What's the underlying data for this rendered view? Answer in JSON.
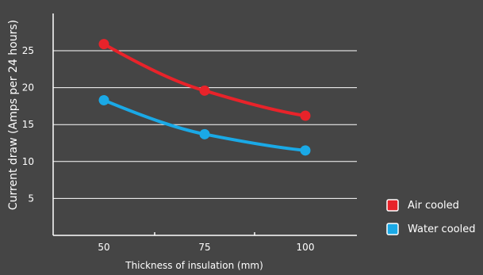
{
  "chart_data": {
    "type": "line",
    "categories": [
      "50",
      "75",
      "100"
    ],
    "series": [
      {
        "name": "Air cooled",
        "values": [
          25.9,
          19.6,
          16.2
        ],
        "color": "#e8232a"
      },
      {
        "name": "Water cooled",
        "values": [
          18.3,
          13.7,
          11.5
        ],
        "color": "#1aa9e6"
      }
    ],
    "xlabel": "Thickness of insulation (mm)",
    "ylabel": "Current draw (Amps per 24 hours)",
    "ylim": [
      0,
      30
    ],
    "yticks": [
      5,
      10,
      15,
      20,
      25
    ],
    "grid": true,
    "legend_position": "right",
    "colors": {
      "background": "#454545",
      "axis": "#ffffff",
      "gridline": "#ffffff",
      "text": "#ffffff"
    }
  }
}
